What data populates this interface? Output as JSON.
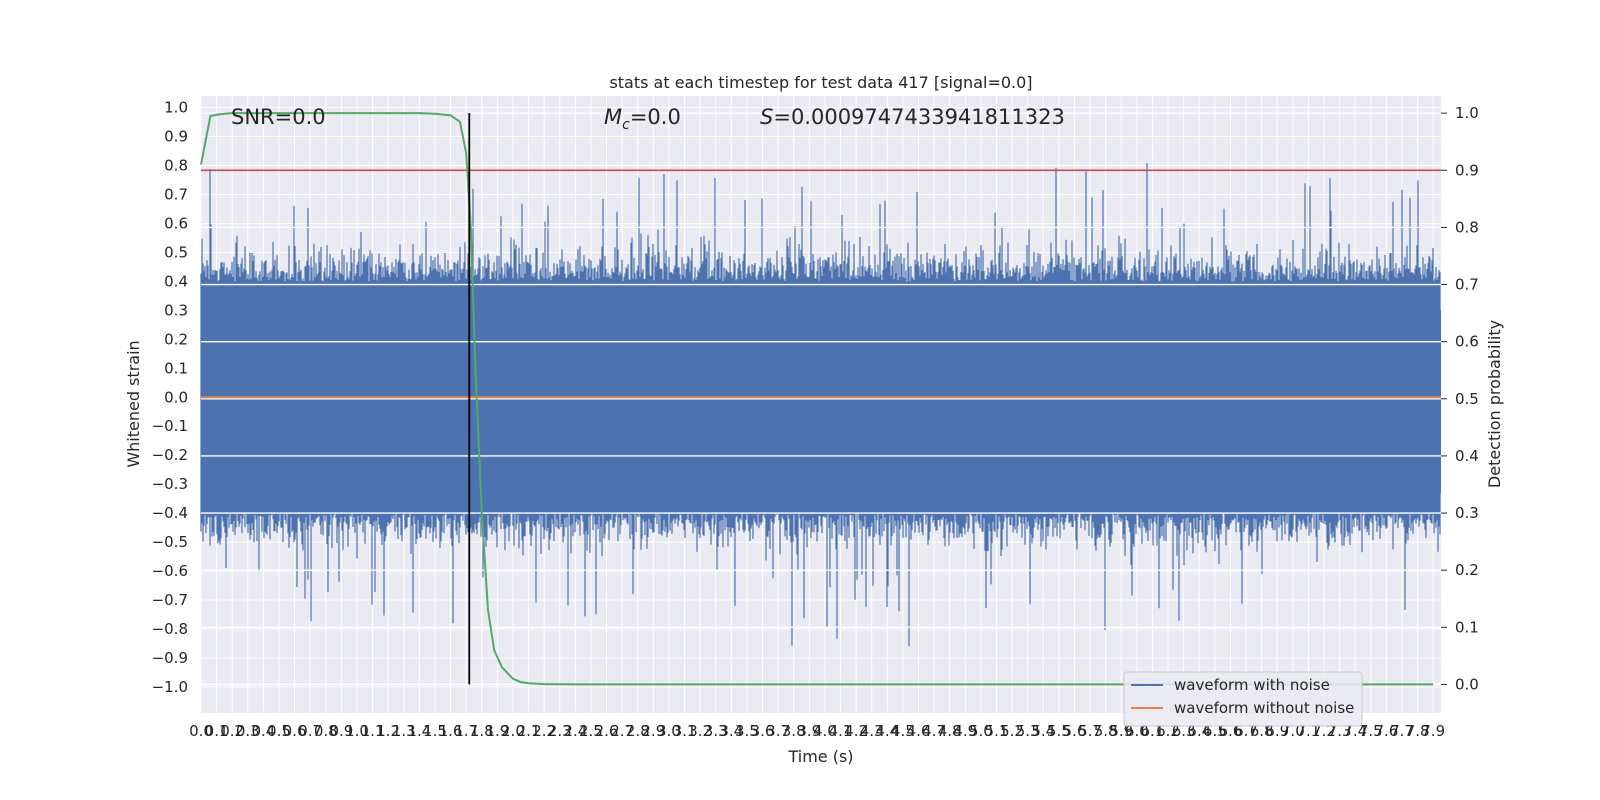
{
  "chart_data": {
    "type": "line",
    "title": "stats at each timestep for test data 417 [signal=0.0]",
    "xlabel": "Time (s)",
    "ylabel": "Whitened strain",
    "y2label": "Detection probability",
    "xlim": [
      0.0,
      7.95
    ],
    "ylim": [
      -1.09,
      1.04
    ],
    "y2lim": [
      -0.05,
      1.03
    ],
    "x_ticks": [
      "0.0",
      "0.1",
      "0.2",
      "0.3",
      "0.4",
      "0.5",
      "0.6",
      "0.7",
      "0.8",
      "0.9",
      "1.0",
      "1.1",
      "1.2",
      "1.3",
      "1.4",
      "1.5",
      "1.6",
      "1.7",
      "1.8",
      "1.9",
      "2.0",
      "2.1",
      "2.2",
      "2.3",
      "2.4",
      "2.5",
      "2.6",
      "2.7",
      "2.8",
      "2.9",
      "3.0",
      "3.1",
      "3.2",
      "3.3",
      "3.4",
      "3.5",
      "3.6",
      "3.7",
      "3.8",
      "3.9",
      "4.0",
      "4.1",
      "4.2",
      "4.3",
      "4.4",
      "4.5",
      "4.6",
      "4.7",
      "4.8",
      "4.9",
      "5.0",
      "5.1",
      "5.2",
      "5.3",
      "5.4",
      "5.5",
      "5.6",
      "5.7",
      "5.8",
      "5.9",
      "6.0",
      "6.1",
      "6.2",
      "6.3",
      "6.4",
      "6.5",
      "6.6",
      "6.7",
      "6.8",
      "6.9",
      "7.0",
      "7.1",
      "7.2",
      "7.3",
      "7.4",
      "7.5",
      "7.6",
      "7.7",
      "7.8",
      "7.9"
    ],
    "y_ticks": [
      "1.0",
      "0.9",
      "0.8",
      "0.7",
      "0.6",
      "0.5",
      "0.4",
      "0.3",
      "0.2",
      "0.1",
      "0.0",
      "−0.1",
      "−0.2",
      "−0.3",
      "−0.4",
      "−0.5",
      "−0.6",
      "−0.7",
      "−0.8",
      "−0.9",
      "−1.0"
    ],
    "y2_ticks": [
      "1.0",
      "0.9",
      "0.8",
      "0.7",
      "0.6",
      "0.5",
      "0.4",
      "0.3",
      "0.2",
      "0.1",
      "0.0"
    ],
    "annotations": {
      "snr": "SNR=0.0",
      "mc_symbol": "M",
      "mc_sub": "c",
      "mc_value": "=0.0",
      "s_symbol": "S",
      "s_value": "=0.0009747433941811323"
    },
    "series": [
      {
        "name": "waveform with noise",
        "color": "#4c72b0",
        "noise_core": 0.4,
        "noise_max": 1.0
      },
      {
        "name": "waveform without noise",
        "color": "#dd8452",
        "values": [
          0.0,
          0.0
        ]
      },
      {
        "color": "#55a868",
        "axis": "right",
        "x": [
          0.0,
          0.06,
          0.12,
          0.2,
          0.3,
          0.5,
          0.8,
          1.0,
          1.2,
          1.4,
          1.5,
          1.6,
          1.66,
          1.7,
          1.73,
          1.76,
          1.8,
          1.84,
          1.88,
          1.93,
          2.0,
          2.05,
          2.1,
          2.2,
          2.4,
          3.0,
          5.0,
          7.9
        ],
        "values": [
          0.91,
          0.995,
          0.998,
          1.0,
          1.0,
          1.0,
          1.0,
          1.0,
          1.0,
          1.0,
          0.999,
          0.996,
          0.985,
          0.93,
          0.8,
          0.55,
          0.3,
          0.13,
          0.06,
          0.03,
          0.01,
          0.004,
          0.002,
          0.0005,
          0.0001,
          0.0,
          0.0,
          0.0
        ]
      },
      {
        "color": "#c44e52",
        "axis": "right",
        "values": [
          0.9,
          0.9
        ]
      }
    ],
    "vline_x": 1.72,
    "grid": true,
    "legend_position": "lower right",
    "colors": {
      "background": "#eaeaf2",
      "grid": "#ffffff",
      "vline": "#000000"
    }
  }
}
